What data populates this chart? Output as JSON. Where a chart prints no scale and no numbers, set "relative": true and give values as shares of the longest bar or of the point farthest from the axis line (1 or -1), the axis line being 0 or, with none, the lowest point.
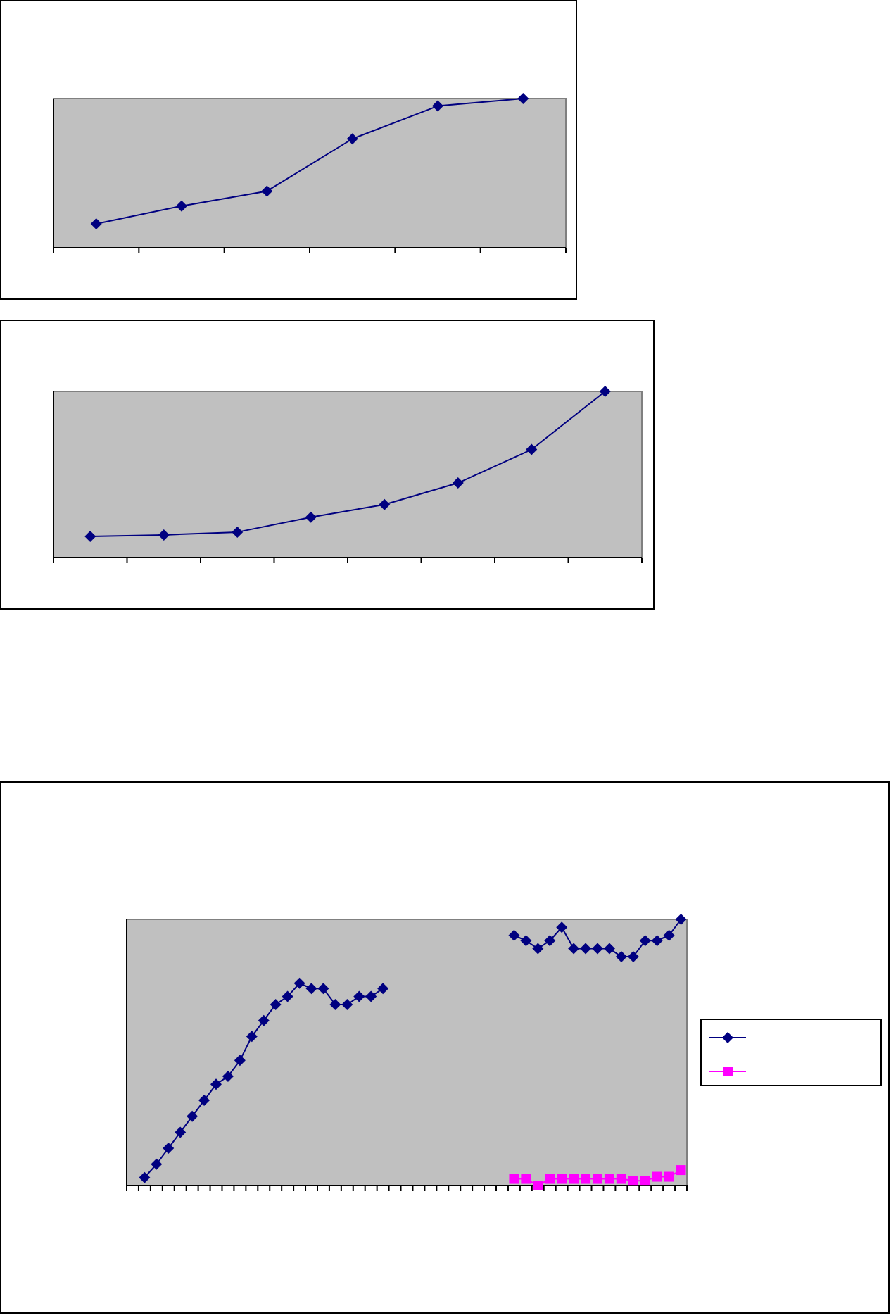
{
  "chart_data": [
    {
      "type": "line",
      "relative": true,
      "categories": [
        null,
        null,
        null,
        null,
        null,
        null
      ],
      "grid": false,
      "series": [
        {
          "color": "#000080",
          "marker": "diamond",
          "values": [
            0.16,
            0.28,
            0.38,
            0.73,
            0.95,
            1
          ]
        }
      ]
    },
    {
      "type": "line",
      "relative": true,
      "categories": [
        null,
        null,
        null,
        null,
        null,
        null,
        null,
        null
      ],
      "grid": false,
      "series": [
        {
          "color": "#000080",
          "marker": "diamond",
          "values": [
            0.127,
            0.136,
            0.153,
            0.243,
            0.319,
            0.449,
            0.65,
            1
          ]
        }
      ]
    },
    {
      "type": "line",
      "relative": true,
      "categories": [
        null,
        null,
        null,
        null,
        null,
        null,
        null,
        null,
        null,
        null,
        null,
        null,
        null,
        null,
        null,
        null,
        null,
        null,
        null,
        null,
        null,
        null,
        null,
        null,
        null,
        null,
        null,
        null,
        null,
        null,
        null,
        null,
        null,
        null,
        null,
        null,
        null,
        null,
        null,
        null,
        null,
        null,
        null,
        null,
        null,
        null,
        null
      ],
      "grid": false,
      "series": [
        {
          "color": "#000080",
          "marker": "diamond",
          "values": [
            null,
            0.03,
            0.08,
            0.14,
            0.2,
            0.26,
            0.32,
            0.38,
            0.41,
            0.47,
            0.56,
            0.62,
            0.68,
            0.71,
            0.76,
            0.74,
            0.74,
            0.68,
            0.68,
            0.71,
            0.71,
            0.74,
            null,
            null,
            null,
            null,
            null,
            null,
            null,
            null,
            null,
            null,
            0.94,
            0.92,
            0.89,
            0.92,
            0.97,
            0.89,
            0.89,
            0.89,
            0.89,
            0.86,
            0.86,
            0.92,
            0.92,
            0.94,
            1
          ]
        },
        {
          "color": "#ff00ff",
          "marker": "square",
          "values": [
            null,
            null,
            null,
            null,
            null,
            null,
            null,
            null,
            null,
            null,
            null,
            null,
            null,
            null,
            null,
            null,
            null,
            null,
            null,
            null,
            null,
            null,
            null,
            null,
            null,
            null,
            null,
            null,
            null,
            null,
            null,
            null,
            0.025,
            0.025,
            0,
            0.025,
            0.025,
            0.025,
            0.025,
            0.025,
            0.025,
            0.025,
            0.018,
            0.018,
            0.033,
            0.033,
            0.058
          ]
        }
      ]
    }
  ]
}
